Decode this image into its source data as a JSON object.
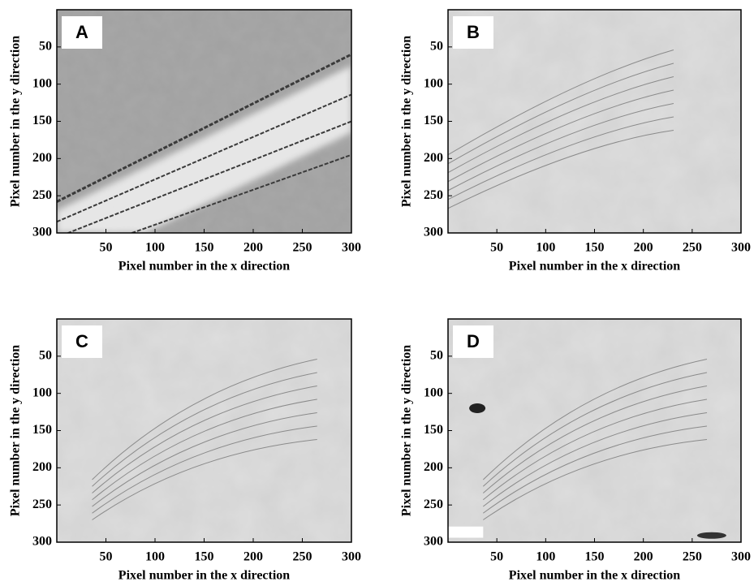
{
  "chart_data": [
    {
      "type": "image",
      "label": "A",
      "xlabel": "Pixel number in the x direction",
      "ylabel": "Pixel number in the y direction",
      "xlim": [
        0,
        300
      ],
      "ylim": [
        300,
        0
      ],
      "xticks": [
        50,
        100,
        150,
        200,
        250,
        300
      ],
      "yticks": [
        50,
        100,
        150,
        200,
        250,
        300
      ]
    },
    {
      "type": "image",
      "label": "B",
      "xlabel": "Pixel number in the x direction",
      "ylabel": "Pixel number in the y direction",
      "xlim": [
        0,
        300
      ],
      "ylim": [
        300,
        0
      ],
      "xticks": [
        50,
        100,
        150,
        200,
        250,
        300
      ],
      "yticks": [
        50,
        100,
        150,
        200,
        250,
        300
      ]
    },
    {
      "type": "image",
      "label": "C",
      "xlabel": "Pixel number in the x direction",
      "ylabel": "Pixel number in the y direction",
      "xlim": [
        0,
        300
      ],
      "ylim": [
        300,
        0
      ],
      "xticks": [
        50,
        100,
        150,
        200,
        250,
        300
      ],
      "yticks": [
        50,
        100,
        150,
        200,
        250,
        300
      ]
    },
    {
      "type": "image",
      "label": "D",
      "xlabel": "Pixel number in the x direction",
      "ylabel": "Pixel number in the y direction",
      "xlim": [
        0,
        300
      ],
      "ylim": [
        300,
        0
      ],
      "xticks": [
        50,
        100,
        150,
        200,
        250,
        300
      ],
      "yticks": [
        50,
        100,
        150,
        200,
        250,
        300
      ]
    }
  ]
}
